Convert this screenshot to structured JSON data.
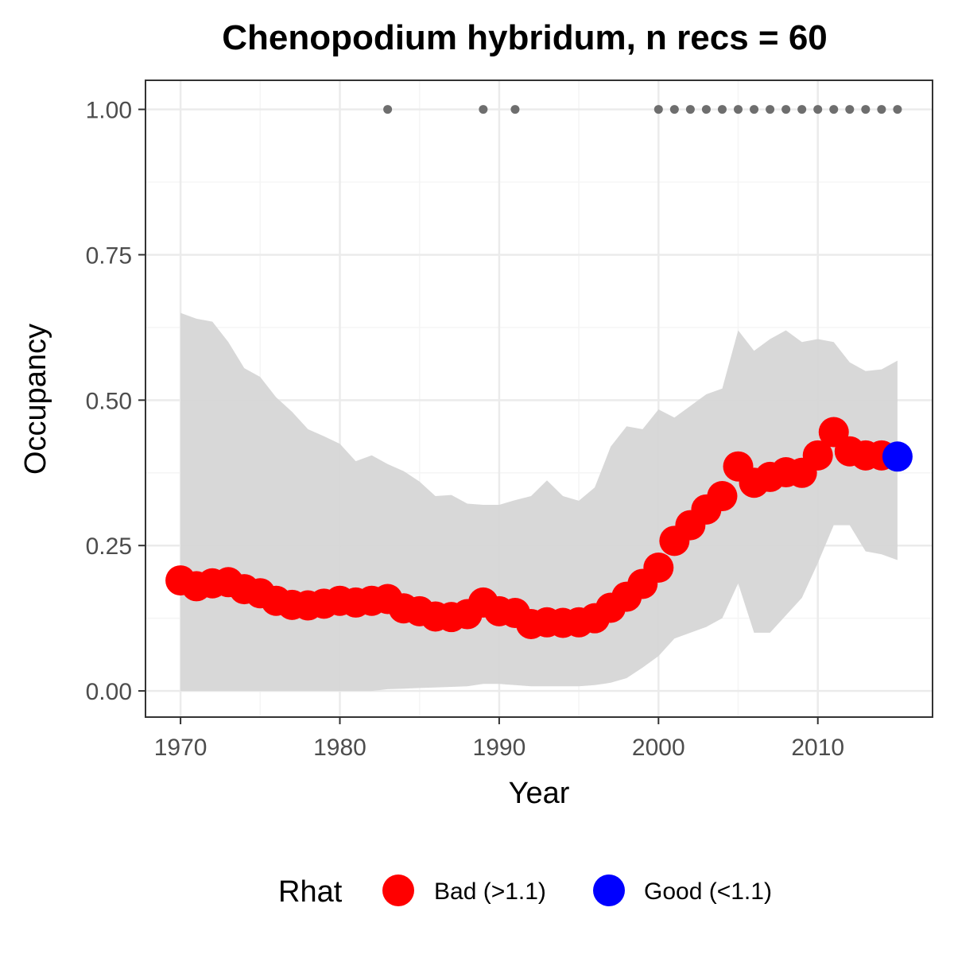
{
  "chart_data": {
    "type": "line",
    "title": "Chenopodium hybridum, n recs = 60",
    "xlabel": "Year",
    "ylabel": "Occupancy",
    "xlim": [
      1967.8,
      2017.2
    ],
    "ylim": [
      -0.045,
      1.05
    ],
    "xticks": [
      1970,
      1980,
      1990,
      2000,
      2010
    ],
    "xtick_labels": [
      "1970",
      "1980",
      "1990",
      "2000",
      "2010"
    ],
    "yticks": [
      0,
      0.25,
      0.5,
      0.75,
      1.0
    ],
    "ytick_labels": [
      "0.00",
      "0.25",
      "0.50",
      "0.75",
      "1.00"
    ],
    "grid": true,
    "legend": {
      "title": "Rhat",
      "position": "bottom",
      "entries": [
        {
          "label": "Bad (>1.1)",
          "color": "#ff0000"
        },
        {
          "label": "Good (<1.1)",
          "color": "#0000ff"
        }
      ]
    },
    "x": [
      1970,
      1971,
      1972,
      1973,
      1974,
      1975,
      1976,
      1977,
      1978,
      1979,
      1980,
      1981,
      1982,
      1983,
      1984,
      1985,
      1986,
      1987,
      1988,
      1989,
      1990,
      1991,
      1992,
      1993,
      1994,
      1995,
      1996,
      1997,
      1998,
      1999,
      2000,
      2001,
      2002,
      2003,
      2004,
      2005,
      2006,
      2007,
      2008,
      2009,
      2010,
      2011,
      2012,
      2013,
      2014,
      2015
    ],
    "series": [
      {
        "values": [
          0.19,
          0.18,
          0.185,
          0.187,
          0.175,
          0.168,
          0.155,
          0.148,
          0.147,
          0.15,
          0.155,
          0.152,
          0.155,
          0.158,
          0.142,
          0.137,
          0.128,
          0.127,
          0.132,
          0.152,
          0.137,
          0.134,
          0.115,
          0.118,
          0.117,
          0.118,
          0.125,
          0.143,
          0.162,
          0.184,
          0.212,
          0.258,
          0.285,
          0.312,
          0.335,
          0.386,
          0.358,
          0.368,
          0.376,
          0.375,
          0.405,
          0.445,
          0.412,
          0.405,
          0.405,
          0.403
        ],
        "rhat": [
          "Bad",
          "Bad",
          "Bad",
          "Bad",
          "Bad",
          "Bad",
          "Bad",
          "Bad",
          "Bad",
          "Bad",
          "Bad",
          "Bad",
          "Bad",
          "Bad",
          "Bad",
          "Bad",
          "Bad",
          "Bad",
          "Bad",
          "Bad",
          "Bad",
          "Bad",
          "Bad",
          "Bad",
          "Bad",
          "Bad",
          "Bad",
          "Bad",
          "Bad",
          "Bad",
          "Bad",
          "Bad",
          "Bad",
          "Bad",
          "Bad",
          "Bad",
          "Bad",
          "Bad",
          "Bad",
          "Bad",
          "Bad",
          "Bad",
          "Bad",
          "Bad",
          "Bad",
          "Good"
        ]
      }
    ],
    "interval_upper": [
      0.65,
      0.64,
      0.635,
      0.6,
      0.555,
      0.54,
      0.505,
      0.48,
      0.45,
      0.438,
      0.425,
      0.395,
      0.405,
      0.39,
      0.378,
      0.36,
      0.335,
      0.337,
      0.322,
      0.32,
      0.32,
      0.328,
      0.335,
      0.362,
      0.335,
      0.327,
      0.35,
      0.42,
      0.455,
      0.45,
      0.484,
      0.47,
      0.49,
      0.51,
      0.52,
      0.62,
      0.585,
      0.605,
      0.62,
      0.6,
      0.605,
      0.6,
      0.565,
      0.55,
      0.553,
      0.568
    ],
    "interval_lower": [
      0.0,
      0.0,
      0.0,
      0.0,
      0.0,
      0.0,
      0.0,
      0.0,
      0.0,
      0.0,
      0.0,
      0.0,
      0.0,
      0.003,
      0.004,
      0.005,
      0.006,
      0.007,
      0.008,
      0.012,
      0.012,
      0.01,
      0.008,
      0.008,
      0.008,
      0.008,
      0.01,
      0.014,
      0.022,
      0.04,
      0.06,
      0.09,
      0.1,
      0.11,
      0.125,
      0.185,
      0.1,
      0.1,
      0.13,
      0.16,
      0.22,
      0.285,
      0.285,
      0.24,
      0.235,
      0.225
    ],
    "records_years": [
      1983,
      1989,
      1991,
      2000,
      2001,
      2002,
      2003,
      2004,
      2005,
      2006,
      2007,
      2008,
      2009,
      2010,
      2011,
      2012,
      2013,
      2014,
      2015
    ],
    "records_value": 1.0,
    "colors": {
      "bad": "#ff0000",
      "good": "#0000ff",
      "ribbon": "#d6d6d6",
      "records": "#6e6e6e",
      "grid_major": "#ebebeb",
      "grid_minor": "#f5f5f5",
      "panel_border": "#333333"
    }
  }
}
